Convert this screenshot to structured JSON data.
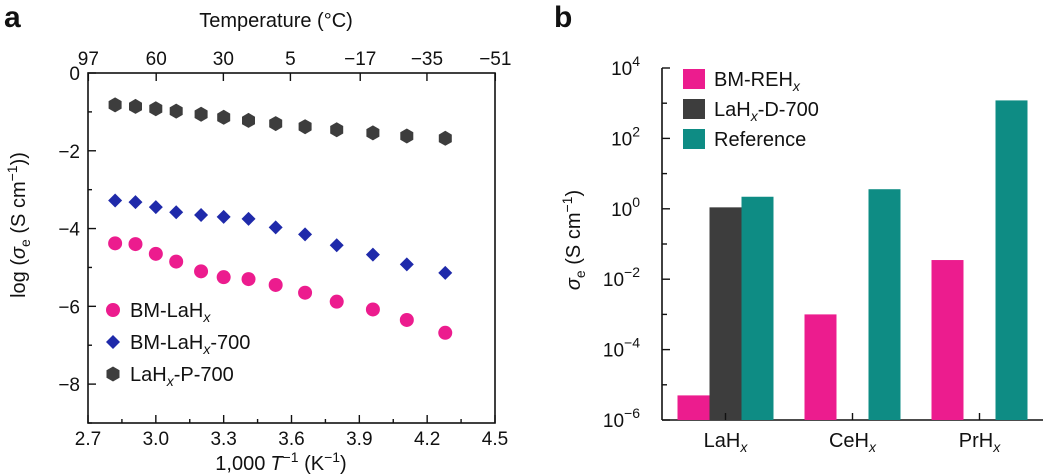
{
  "chart_data": [
    {
      "panel": "a",
      "type": "scatter",
      "title": "",
      "xlabel": "1,000 T⁻¹ (K⁻¹)",
      "ylabel": "log (σe (S cm⁻¹))",
      "secondary_xlabel": "Temperature (°C)",
      "xlim": [
        2.7,
        4.5
      ],
      "ylim": [
        -9,
        0
      ],
      "xticks": [
        "2.7",
        "3.0",
        "3.3",
        "3.6",
        "3.9",
        "4.2",
        "4.5"
      ],
      "yticks": [
        "0",
        "−2",
        "−4",
        "−6",
        "−8"
      ],
      "top_ticks": [
        "97",
        "60",
        "30",
        "5",
        "−17",
        "−35",
        "−51"
      ],
      "top_tick_positions_celsius": [
        97,
        60,
        30,
        5,
        -17,
        -35,
        -51
      ],
      "legend_position": "bottom-left",
      "series": [
        {
          "name": "BM-LaHx",
          "color": "#ec1c8e",
          "marker": "circle",
          "x": [
            2.82,
            2.91,
            3.0,
            3.09,
            3.2,
            3.3,
            3.41,
            3.53,
            3.66,
            3.8,
            3.96,
            4.11,
            4.28
          ],
          "y": [
            -4.38,
            -4.4,
            -4.65,
            -4.85,
            -5.1,
            -5.25,
            -5.3,
            -5.45,
            -5.65,
            -5.88,
            -6.08,
            -6.35,
            -6.68
          ]
        },
        {
          "name": "BM-LaHx-700",
          "color": "#1f2aaa",
          "marker": "diamond",
          "x": [
            2.82,
            2.91,
            3.0,
            3.09,
            3.2,
            3.3,
            3.41,
            3.53,
            3.66,
            3.8,
            3.96,
            4.11,
            4.28
          ],
          "y": [
            -3.28,
            -3.32,
            -3.45,
            -3.58,
            -3.65,
            -3.7,
            -3.75,
            -3.97,
            -4.15,
            -4.43,
            -4.67,
            -4.92,
            -5.14
          ]
        },
        {
          "name": "LaHx-P-700",
          "color": "#3d3d3d",
          "marker": "hexagon",
          "x": [
            2.82,
            2.91,
            3.0,
            3.09,
            3.2,
            3.3,
            3.41,
            3.53,
            3.66,
            3.8,
            3.96,
            4.11,
            4.28
          ],
          "y": [
            -0.82,
            -0.86,
            -0.92,
            -0.98,
            -1.06,
            -1.14,
            -1.22,
            -1.3,
            -1.38,
            -1.46,
            -1.54,
            -1.62,
            -1.68
          ]
        }
      ]
    },
    {
      "panel": "b",
      "type": "bar",
      "title": "",
      "xlabel": "",
      "ylabel": "σe (S cm⁻¹)",
      "yscale": "log",
      "ylim": [
        1e-06,
        10000.0
      ],
      "yticks": [
        "10⁻⁶",
        "10⁻⁴",
        "10⁻²",
        "10⁰",
        "10²",
        "10⁴"
      ],
      "categories": [
        "LaHx",
        "CeHx",
        "PrHx"
      ],
      "legend_position": "top-left",
      "series": [
        {
          "name": "BM-REHx",
          "color": "#ec1c8e",
          "values": [
            5e-06,
            0.001,
            0.035
          ]
        },
        {
          "name": "LaHx-D-700",
          "color": "#3d3d3d",
          "values": [
            1.1,
            null,
            null
          ]
        },
        {
          "name": "Reference",
          "color": "#0e8c84",
          "values": [
            2.2,
            3.6,
            1200
          ]
        }
      ]
    }
  ],
  "labels": {
    "panel_a": "a",
    "panel_b": "b",
    "a_top_axis_title": "Temperature (°C)",
    "a_bottom_axis_title": "1,000",
    "a_bottom_axis_T": "T",
    "a_bottom_axis_rest": "−1 (K−1)",
    "a_yaxis_prefix": "log (",
    "a_yaxis_sigma": "σ",
    "a_yaxis_sub": "e",
    "a_yaxis_suffix": " (S cm",
    "a_yaxis_sup": "−1",
    "a_yaxis_close": "))",
    "a_legend": [
      {
        "base": "BM-LaH",
        "sub": "x",
        "suffix": ""
      },
      {
        "base": "BM-LaH",
        "sub": "x",
        "suffix": "-700"
      },
      {
        "base": "LaH",
        "sub": "x",
        "suffix": "-P-700"
      }
    ],
    "b_yaxis_sigma": "σ",
    "b_yaxis_sub": "e",
    "b_yaxis_suffix": " (S cm",
    "b_yaxis_sup": "−1",
    "b_yaxis_close": ")",
    "b_legend": [
      {
        "base": "BM-REH",
        "sub": "x",
        "suffix": ""
      },
      {
        "base": "LaH",
        "sub": "x",
        "suffix": "-D-700"
      },
      {
        "base": "Reference",
        "sub": "",
        "suffix": ""
      }
    ],
    "b_categories": [
      {
        "base": "LaH",
        "sub": "x"
      },
      {
        "base": "CeH",
        "sub": "x"
      },
      {
        "base": "PrH",
        "sub": "x"
      }
    ],
    "b_ytick_base": "10",
    "b_ytick_exps": [
      "−6",
      "−4",
      "−2",
      "0",
      "2",
      "4"
    ]
  }
}
